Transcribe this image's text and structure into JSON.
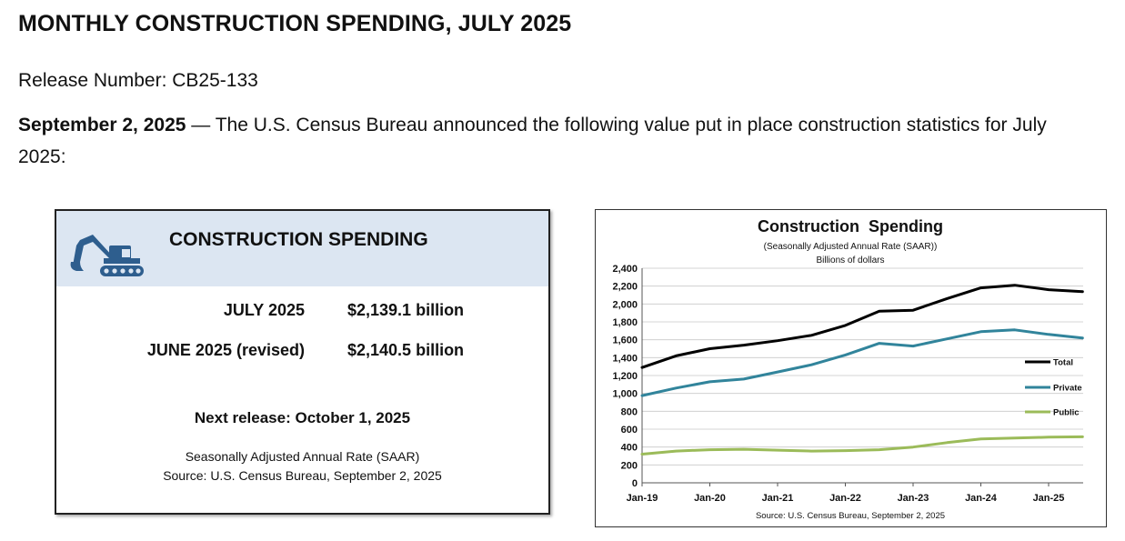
{
  "doc": {
    "title": "MONTHLY CONSTRUCTION SPENDING, JULY 2025",
    "release_number": "Release Number: CB25-133",
    "intro_date": "September 2, 2025",
    "intro_text": " — The U.S. Census Bureau announced the following value put in place construction statistics for July 2025:"
  },
  "card": {
    "title": "CONSTRUCTION SPENDING",
    "icon": "excavator-icon",
    "rows": [
      {
        "label": "JULY 2025",
        "value": "$2,139.1 billion"
      },
      {
        "label": "JUNE 2025 (revised)",
        "value": "$2,140.5 billion"
      }
    ],
    "next_release": "Next release: October 1, 2025",
    "note_line1": "Seasonally Adjusted Annual Rate (SAAR)",
    "note_line2": "Source: U.S. Census Bureau, September 2, 2025",
    "colors": {
      "header_bg": "#dce6f2",
      "icon": "#2e5e8e"
    }
  },
  "chart_data": {
    "type": "line",
    "title": "Construction  Spending",
    "subtitle1": "(Seasonally Adjusted Annual Rate (SAAR))",
    "subtitle2": "Billions of dollars",
    "source": "Source: U.S. Census Bureau, September 2, 2025",
    "ylim": [
      0,
      2400
    ],
    "yticks": [
      "0",
      "200",
      "400",
      "600",
      "800",
      "1,000",
      "1,200",
      "1,400",
      "1,600",
      "1,800",
      "2,000",
      "2,200",
      "2,400"
    ],
    "xticks": [
      "Jan-19",
      "Jan-20",
      "Jan-21",
      "Jan-22",
      "Jan-23",
      "Jan-24",
      "Jan-25"
    ],
    "grid": true,
    "legend_position": "right",
    "x": [
      "Jan-19",
      "Jul-19",
      "Jan-20",
      "Jul-20",
      "Jan-21",
      "Jul-21",
      "Jan-22",
      "Jul-22",
      "Jan-23",
      "Jul-23",
      "Jan-24",
      "Jul-24",
      "Jan-25",
      "Jul-25"
    ],
    "series": [
      {
        "name": "Total",
        "color": "#000000",
        "values": [
          1290,
          1420,
          1500,
          1540,
          1590,
          1650,
          1760,
          1920,
          1930,
          2060,
          2180,
          2210,
          2160,
          2139
        ]
      },
      {
        "name": "Private",
        "color": "#31849b",
        "values": [
          975,
          1060,
          1130,
          1160,
          1240,
          1320,
          1430,
          1560,
          1530,
          1610,
          1690,
          1710,
          1660,
          1620
        ]
      },
      {
        "name": "Public",
        "color": "#9bbb59",
        "values": [
          320,
          355,
          370,
          375,
          365,
          355,
          360,
          370,
          400,
          450,
          490,
          500,
          510,
          515
        ]
      }
    ]
  }
}
